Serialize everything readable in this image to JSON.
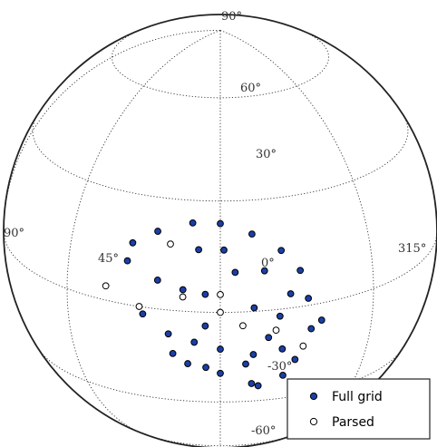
{
  "figure": {
    "meridian_labels": [
      "90°",
      "45°",
      "0°",
      "315°"
    ],
    "parallel_labels": [
      "90°",
      "60°",
      "30°",
      "-30°",
      "-60°"
    ],
    "legend": [
      {
        "label": "Full grid",
        "marker": "filled-circle",
        "color": "#1a3fa8"
      },
      {
        "label": "Parsed",
        "marker": "open-circle",
        "color": "#ffffff"
      }
    ]
  },
  "chart_data": {
    "type": "scatter",
    "projection": "orthographic",
    "grid": true,
    "legend_position": "bottom-right",
    "meridians_deg": [
      90,
      45,
      0,
      -45
    ],
    "parallels_deg": [
      -60,
      -30,
      0,
      30,
      60
    ],
    "series": [
      {
        "name": "Full grid",
        "marker": "filled",
        "color": "#1a3fa8",
        "points": [
          {
            "lon": 8,
            "lat": 24
          },
          {
            "lon": 0,
            "lat": 24
          },
          {
            "lon": -9,
            "lat": 21
          },
          {
            "lon": 18,
            "lat": 21
          },
          {
            "lon": 25,
            "lat": 17
          },
          {
            "lon": 6,
            "lat": 17
          },
          {
            "lon": -1,
            "lat": 17
          },
          {
            "lon": -17,
            "lat": 16
          },
          {
            "lon": -22,
            "lat": 10
          },
          {
            "lon": -12,
            "lat": 11
          },
          {
            "lon": -4,
            "lat": 11
          },
          {
            "lon": 17,
            "lat": 8
          },
          {
            "lon": 26,
            "lat": 12
          },
          {
            "lon": 4,
            "lat": 5
          },
          {
            "lon": -19,
            "lat": 4
          },
          {
            "lon": 10,
            "lat": 6
          },
          {
            "lon": -24,
            "lat": 2
          },
          {
            "lon": -9,
            "lat": 1
          },
          {
            "lon": -16,
            "lat": -2
          },
          {
            "lon": 21,
            "lat": -2
          },
          {
            "lon": -28,
            "lat": -5
          },
          {
            "lon": 4,
            "lat": -4
          },
          {
            "lon": -25,
            "lat": -7
          },
          {
            "lon": -13,
            "lat": -8
          },
          {
            "lon": 14,
            "lat": -7
          },
          {
            "lon": 0,
            "lat": -11
          },
          {
            "lon": 7,
            "lat": -9
          },
          {
            "lon": -17,
            "lat": -12
          },
          {
            "lon": -9,
            "lat": -13
          },
          {
            "lon": 13,
            "lat": -13
          },
          {
            "lon": 9,
            "lat": -16
          },
          {
            "lon": -7,
            "lat": -16
          },
          {
            "lon": 4,
            "lat": -17
          },
          {
            "lon": 0,
            "lat": -19
          },
          {
            "lon": -21,
            "lat": -16
          },
          {
            "lon": -18,
            "lat": -21
          },
          {
            "lon": -9,
            "lat": -23
          },
          {
            "lon": -11,
            "lat": -24
          }
        ]
      },
      {
        "name": "Parsed",
        "marker": "open",
        "color": "#ffffff",
        "points": [
          {
            "lon": 14,
            "lat": 18
          },
          {
            "lon": 32,
            "lat": 4
          },
          {
            "lon": 10,
            "lat": 4
          },
          {
            "lon": 0,
            "lat": 5
          },
          {
            "lon": 22,
            "lat": 0
          },
          {
            "lon": 0,
            "lat": 0
          },
          {
            "lon": -6,
            "lat": -4
          },
          {
            "lon": -15,
            "lat": -6
          },
          {
            "lon": -23,
            "lat": -12
          }
        ]
      }
    ]
  }
}
